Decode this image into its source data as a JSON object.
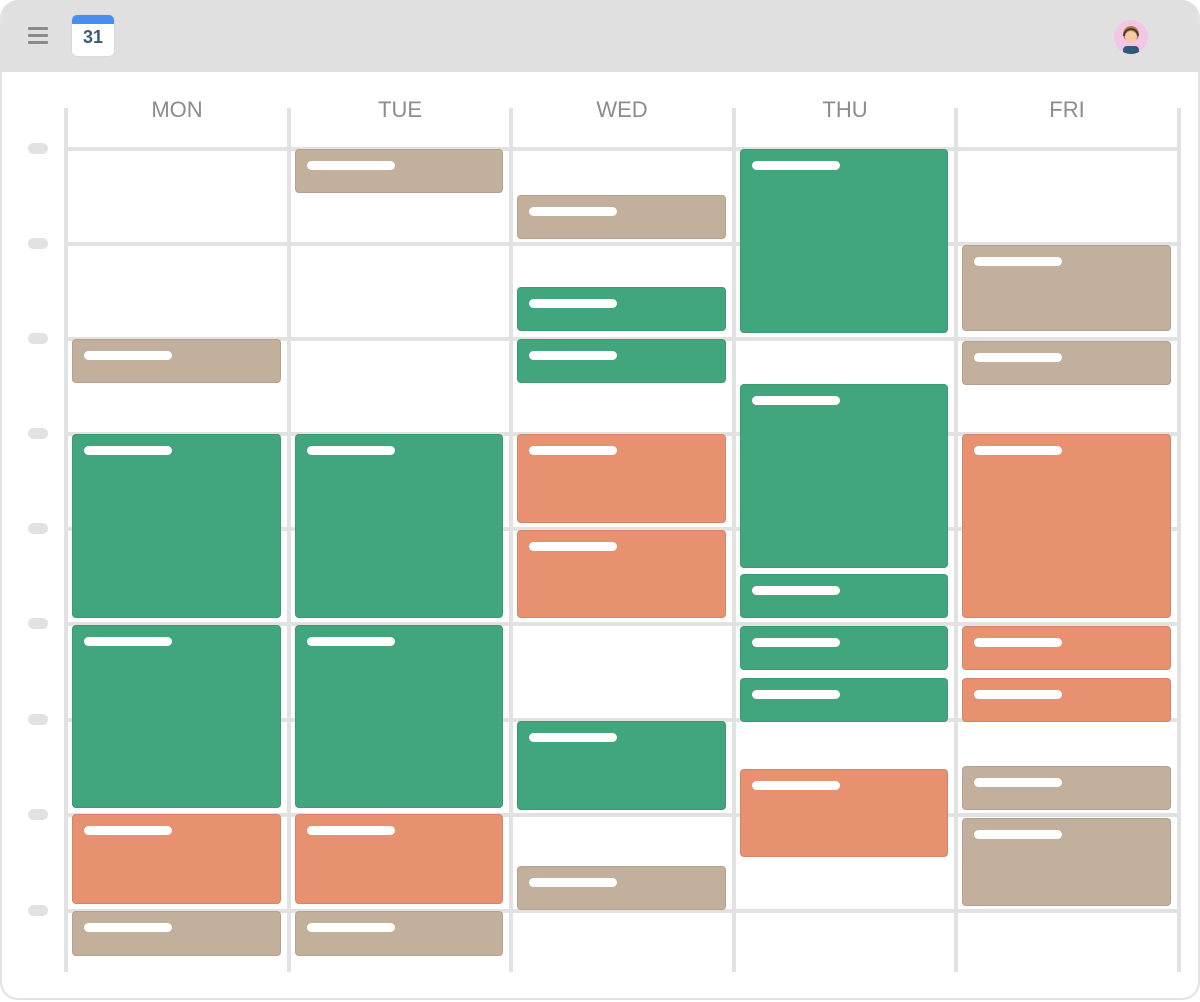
{
  "header": {
    "date_icon": "31"
  },
  "days": [
    "MON",
    "TUE",
    "WED",
    "THU",
    "FRI"
  ]
}
